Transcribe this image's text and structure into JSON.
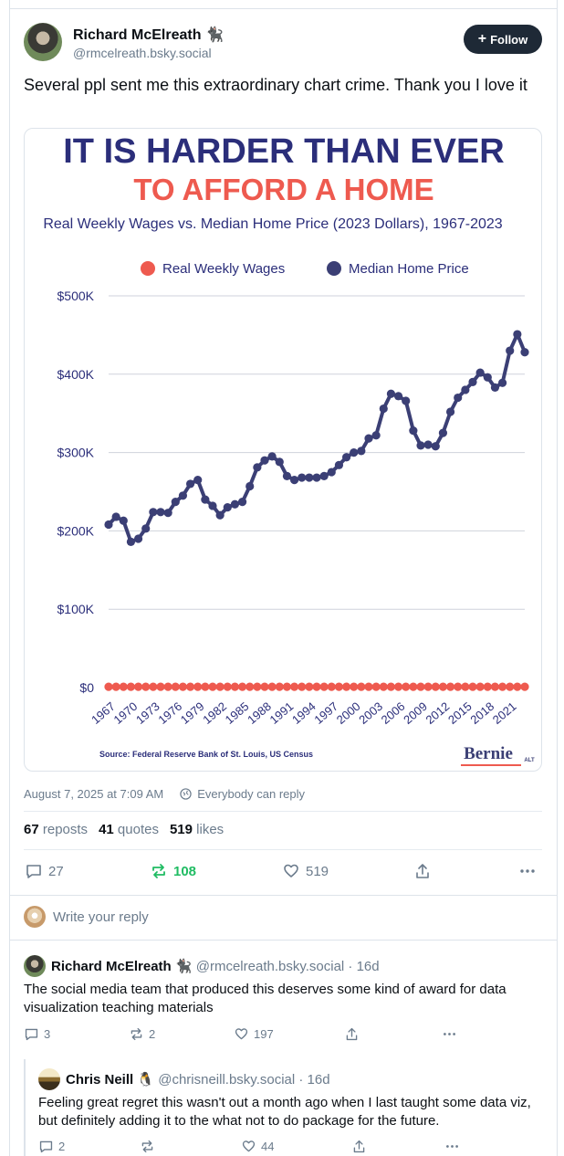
{
  "post": {
    "author_name": "Richard McElreath",
    "author_emoji": "🐈‍⬛",
    "handle": "@rmcelreath.bsky.social",
    "follow_label": "Follow",
    "text": "Several ppl sent me this extraordinary chart crime. Thank you I love it",
    "timestamp": "August 7, 2025 at 7:09 AM",
    "reply_setting": "Everybody can reply",
    "reposts_count": "67",
    "reposts_label": "reposts",
    "quotes_count": "41",
    "quotes_label": "quotes",
    "likes_count": "519",
    "likes_label": "likes",
    "actions": {
      "replies": "27",
      "reposts": "108",
      "likes": "519"
    },
    "repost_active_color": "#20bc63"
  },
  "compose": {
    "placeholder": "Write your reply"
  },
  "replies": [
    {
      "author_name": "Richard McElreath",
      "author_emoji": "🐈‍⬛",
      "handle": "@rmcelreath.bsky.social",
      "age": "· 16d",
      "text": "The social media team that produced this deserves some kind of award for data visualization teaching materials",
      "replies": "3",
      "reposts": "2",
      "likes": "197"
    },
    {
      "author_name": "Chris Neill",
      "author_emoji": "🐧",
      "handle": "@chrisneill.bsky.social",
      "age": "· 16d",
      "text": "Feeling great regret this wasn't out a month ago when I last taught some data viz, but definitely adding it to the what not to do package for the future.",
      "replies": "2",
      "reposts": "",
      "likes": "44"
    }
  ],
  "chart_data": {
    "type": "line",
    "title_line1": "IT IS HARDER THAN EVER",
    "title_line2": "TO AFFORD A HOME",
    "subtitle": "Real Weekly Wages vs. Median Home Price (2023 Dollars), 1967-2023",
    "source": "Source: Federal Reserve Bank of St. Louis, US Census",
    "brand": "Bernie",
    "brand_sub": "ALT",
    "legend_position": "top",
    "grid": true,
    "ylim": [
      0,
      500000
    ],
    "y_ticks": [
      {
        "value": 0,
        "label": "$0"
      },
      {
        "value": 100000,
        "label": "$100K"
      },
      {
        "value": 200000,
        "label": "$200K"
      },
      {
        "value": 300000,
        "label": "$300K"
      },
      {
        "value": 400000,
        "label": "$400K"
      },
      {
        "value": 500000,
        "label": "$500K"
      }
    ],
    "x_tick_labels": [
      "1967",
      "1970",
      "1973",
      "1976",
      "1979",
      "1982",
      "1985",
      "1988",
      "1991",
      "1994",
      "1997",
      "2000",
      "2003",
      "2006",
      "2009",
      "2012",
      "2015",
      "2018",
      "2021"
    ],
    "x": [
      1967,
      1968,
      1969,
      1970,
      1971,
      1972,
      1973,
      1974,
      1975,
      1976,
      1977,
      1978,
      1979,
      1980,
      1981,
      1982,
      1983,
      1984,
      1985,
      1986,
      1987,
      1988,
      1989,
      1990,
      1991,
      1992,
      1993,
      1994,
      1995,
      1996,
      1997,
      1998,
      1999,
      2000,
      2001,
      2002,
      2003,
      2004,
      2005,
      2006,
      2007,
      2008,
      2009,
      2010,
      2011,
      2012,
      2013,
      2014,
      2015,
      2016,
      2017,
      2018,
      2019,
      2020,
      2021,
      2022,
      2023
    ],
    "series": [
      {
        "name": "Real Weekly Wages",
        "color": "#ee5a4f",
        "values": [
          1000,
          1000,
          1000,
          1000,
          1000,
          1000,
          1000,
          1000,
          1000,
          1000,
          1000,
          1000,
          1000,
          1000,
          1000,
          1000,
          1000,
          1000,
          1000,
          1000,
          1000,
          1000,
          1000,
          1000,
          1000,
          1000,
          1000,
          1000,
          1000,
          1000,
          1000,
          1000,
          1000,
          1000,
          1000,
          1000,
          1000,
          1000,
          1000,
          1000,
          1000,
          1000,
          1000,
          1000,
          1000,
          1000,
          1000,
          1000,
          1000,
          1000,
          1000,
          1000,
          1000,
          1000,
          1000,
          1000,
          1000
        ]
      },
      {
        "name": "Median Home Price",
        "color": "#3b3f75",
        "values": [
          208000,
          218000,
          213000,
          186000,
          190000,
          203000,
          224000,
          224000,
          223000,
          237000,
          245000,
          260000,
          265000,
          240000,
          232000,
          220000,
          230000,
          234000,
          237000,
          257000,
          281000,
          290000,
          295000,
          288000,
          270000,
          265000,
          268000,
          268000,
          268000,
          270000,
          275000,
          284000,
          294000,
          300000,
          302000,
          318000,
          322000,
          356000,
          375000,
          372000,
          366000,
          328000,
          309000,
          310000,
          308000,
          325000,
          352000,
          370000,
          380000,
          390000,
          402000,
          396000,
          383000,
          389000,
          430000,
          451000,
          428000
        ]
      }
    ]
  }
}
